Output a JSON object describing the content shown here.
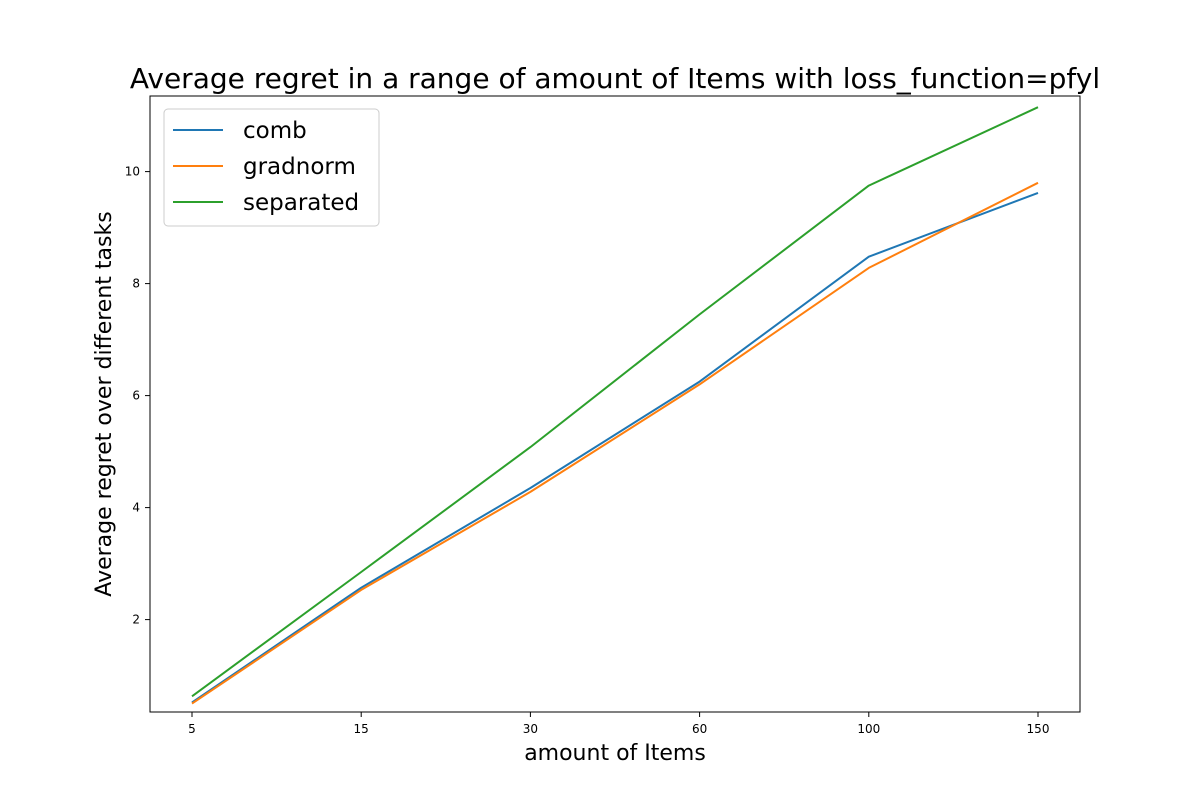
{
  "chart_data": {
    "type": "line",
    "title": "Average regret in a range of amount of Items with loss_function=pfyl",
    "xlabel": "amount of Items",
    "ylabel": "Average regret over different tasks",
    "categories": [
      "5",
      "15",
      "30",
      "60",
      "100",
      "150"
    ],
    "yticks": [
      "2",
      "4",
      "6",
      "8",
      "10"
    ],
    "ylim": [
      0.35,
      11.35
    ],
    "grid": false,
    "legend_position": "top-left",
    "series": [
      {
        "name": "comb",
        "color": "#1f77b4",
        "values": [
          0.52,
          2.57,
          4.35,
          6.25,
          8.48,
          9.62
        ]
      },
      {
        "name": "gradnorm",
        "color": "#ff7f0e",
        "values": [
          0.5,
          2.53,
          4.28,
          6.2,
          8.28,
          9.8
        ]
      },
      {
        "name": "separated",
        "color": "#2ca02c",
        "values": [
          0.63,
          2.85,
          5.08,
          7.45,
          9.75,
          11.15
        ]
      }
    ]
  }
}
